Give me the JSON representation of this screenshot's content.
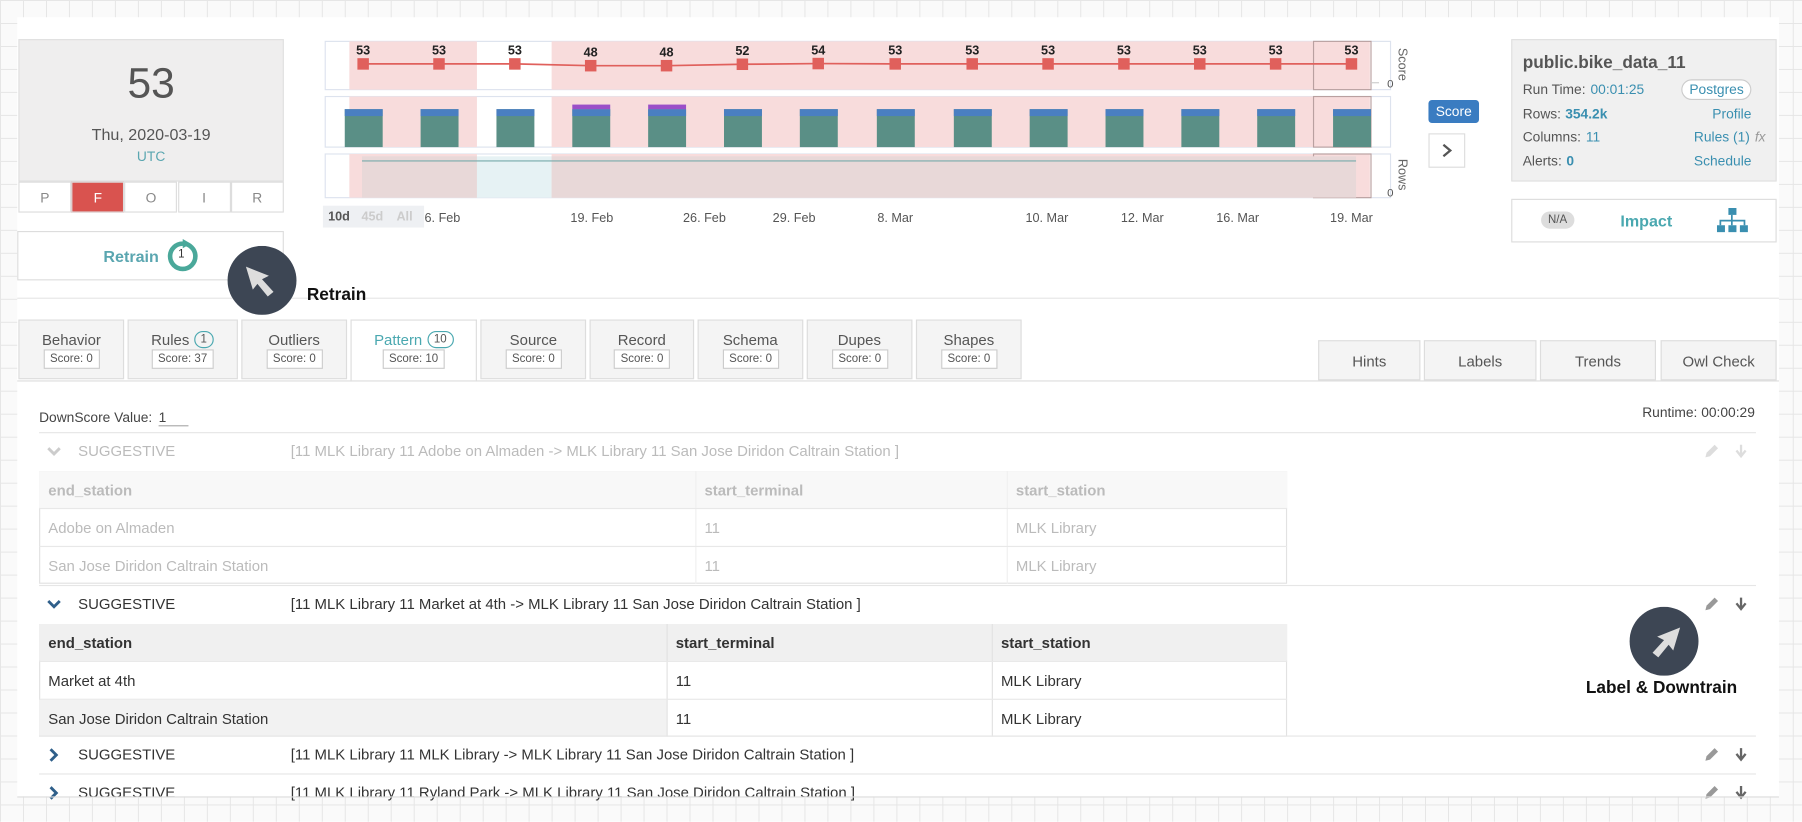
{
  "summary_card": {
    "score": "53",
    "date": "Thu, 2020-03-19",
    "timezone": "UTC",
    "filters": [
      "P",
      "F",
      "O",
      "I",
      "R"
    ]
  },
  "retrain": {
    "label": "Retrain",
    "count": "1"
  },
  "chart_data": {
    "type": "line",
    "values": [
      53,
      53,
      53,
      48,
      48,
      52,
      54,
      53,
      53,
      53,
      53,
      53,
      53,
      53
    ],
    "color": "#e0605c",
    "ylim": [
      0,
      110
    ],
    "yticks": [
      0
    ],
    "ylabel": "Score",
    "rows_label": "Rows",
    "rows_yticks": [
      0
    ],
    "ranges": [
      "10d",
      "45d",
      "All"
    ],
    "x_labels": [
      "6. Feb",
      "19. Feb",
      "26. Feb",
      "29. Feb",
      "8. Mar",
      "10. Mar",
      "12. Mar",
      "16. Mar",
      "19. Mar"
    ]
  },
  "score_toggle": "Score",
  "dataset": {
    "name": "public.bike_data_11",
    "fields": [
      {
        "label": "Run Time:",
        "value": "00:01:25",
        "link": "Postgres"
      },
      {
        "label": "Rows:",
        "value": "354.2k",
        "link": "Profile"
      },
      {
        "label": "Columns:",
        "value": "11",
        "link": "Rules (1)",
        "extra": "fx"
      },
      {
        "label": "Alerts:",
        "value": "0",
        "link": "Schedule"
      }
    ]
  },
  "impact": {
    "status": "N/A",
    "label": "Impact"
  },
  "tabs": [
    {
      "name": "Behavior",
      "score": "Score: 0"
    },
    {
      "name": "Rules",
      "count": "1",
      "score": "Score: 37"
    },
    {
      "name": "Outliers",
      "score": "Score: 0"
    },
    {
      "name": "Pattern",
      "count": "10",
      "score": "Score: 10"
    },
    {
      "name": "Source",
      "score": "Score: 0"
    },
    {
      "name": "Record",
      "score": "Score: 0"
    },
    {
      "name": "Schema",
      "score": "Score: 0"
    },
    {
      "name": "Dupes",
      "score": "Score: 0"
    },
    {
      "name": "Shapes",
      "score": "Score: 0"
    }
  ],
  "tools": [
    "Hints",
    "Labels",
    "Trends",
    "Owl Check"
  ],
  "downscore": {
    "label": "DownScore Value:",
    "value": "1"
  },
  "runtime": "Runtime: 00:00:29",
  "patterns": [
    {
      "level": "SUGGESTIVE",
      "text": "[11 MLK Library 11 Adobe on Almaden -> MLK Library 11 San Jose Diridon Caltrain Station ]",
      "columns": [
        "end_station",
        "start_terminal",
        "start_station"
      ],
      "rows": [
        [
          "Adobe on Almaden",
          "11",
          "MLK Library"
        ],
        [
          "San Jose Diridon Caltrain Station",
          "11",
          "MLK Library"
        ]
      ]
    },
    {
      "level": "SUGGESTIVE",
      "text": "[11 MLK Library 11 Market at 4th -> MLK Library 11 San Jose Diridon Caltrain Station ]",
      "columns": [
        "end_station",
        "start_terminal",
        "start_station"
      ],
      "rows": [
        [
          "Market at 4th",
          "11",
          "MLK Library"
        ],
        [
          "San Jose Diridon Caltrain Station",
          "11",
          "MLK Library"
        ]
      ]
    },
    {
      "level": "SUGGESTIVE",
      "text": "[11 MLK Library 11 MLK Library -> MLK Library 11 San Jose Diridon Caltrain Station ]"
    },
    {
      "level": "SUGGESTIVE",
      "text": "[11 MLK Library 11 Ryland Park -> MLK Library 11 San Jose Diridon Caltrain Station ]"
    }
  ],
  "annotations": [
    {
      "label": "Retrain"
    },
    {
      "label": "Label & Downtrain"
    }
  ]
}
